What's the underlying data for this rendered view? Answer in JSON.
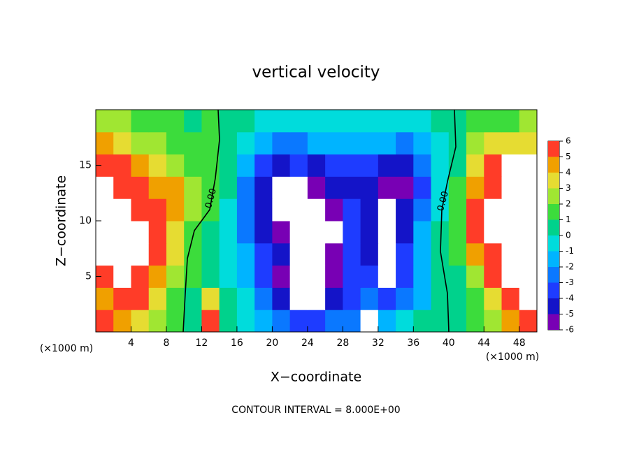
{
  "chart_data": {
    "type": "contour",
    "title": "vertical velocity",
    "xlabel": "X−coordinate",
    "ylabel": "Z−coordinate",
    "x_unit_label": "(×1000 m)",
    "footer": "CONTOUR INTERVAL = 8.000E+00",
    "contour_labels": [
      "0.00",
      "0.00"
    ],
    "xlim": [
      0,
      50
    ],
    "ylim": [
      0,
      20
    ],
    "xticks": [
      4,
      8,
      12,
      16,
      20,
      24,
      28,
      32,
      36,
      40,
      44,
      48
    ],
    "yticks": [
      5,
      10,
      15
    ],
    "x": [
      1,
      3,
      5,
      7,
      9,
      11,
      13,
      15,
      17,
      19,
      21,
      23,
      25,
      27,
      29,
      31,
      33,
      35,
      37,
      39,
      41,
      43,
      45,
      47,
      49
    ],
    "z": [
      1,
      3,
      5,
      7,
      9,
      11,
      13,
      15,
      17,
      19
    ],
    "values": [
      [
        5,
        4,
        3,
        2,
        1,
        0.5,
        5,
        0,
        -1,
        -2,
        -3,
        -4,
        -4,
        -3,
        -3,
        7,
        -2,
        -1,
        0,
        0,
        0.5,
        1,
        2,
        4,
        5
      ],
      [
        4,
        6,
        5,
        3,
        1,
        0.5,
        3,
        0,
        -1,
        -3,
        -5,
        -7,
        -8,
        -5,
        -4,
        -3,
        -4,
        -3,
        -2,
        0,
        0.5,
        1,
        3,
        5,
        7
      ],
      [
        5,
        8,
        6,
        4,
        2,
        1,
        0.5,
        -1,
        -2,
        -4,
        -6,
        -8,
        -8,
        -6,
        -4,
        -4,
        -7,
        -4,
        -2,
        0,
        0.5,
        2,
        5,
        7,
        8
      ],
      [
        8,
        7,
        8,
        5,
        3,
        1,
        0.5,
        -1,
        -2,
        -4,
        -5,
        -8,
        -8,
        -6,
        -4,
        -5,
        -8,
        -4,
        -2,
        0,
        1,
        4,
        6,
        7,
        8
      ],
      [
        8,
        8,
        7,
        5,
        3,
        1.5,
        0.5,
        -1,
        -3,
        -5,
        -6,
        -8,
        -8,
        -7,
        -4,
        -5,
        -8,
        -5,
        -2,
        0,
        1,
        5,
        7,
        8,
        7
      ],
      [
        8,
        8,
        5,
        5,
        4,
        2,
        1,
        -0.5,
        -3,
        -5,
        -8,
        -7,
        -8,
        -6,
        -4,
        -5,
        -7,
        -5,
        -3,
        -1,
        1,
        5,
        7,
        8,
        7
      ],
      [
        8,
        6,
        5,
        4,
        4,
        2,
        1,
        0,
        -3,
        -5,
        -7,
        -7,
        -6,
        -5,
        -5,
        -5,
        -6,
        -6,
        -4,
        -1,
        1,
        4,
        6,
        8,
        8
      ],
      [
        6,
        5,
        4,
        3,
        2,
        1.5,
        1,
        0.5,
        -2,
        -4,
        -5,
        -4,
        -5,
        -4,
        -4,
        -4,
        -5,
        -5,
        -3,
        -1,
        0.5,
        3,
        5,
        7,
        7
      ],
      [
        4,
        3,
        2,
        2,
        1.5,
        1,
        1,
        0.5,
        -1,
        -2,
        -3,
        -3,
        -2,
        -2,
        -2,
        -2,
        -2,
        -3,
        -2,
        -0.5,
        0.5,
        2,
        3,
        3,
        3
      ],
      [
        2,
        2,
        1,
        1,
        1,
        0.5,
        1,
        0.5,
        0,
        -0.5,
        -1,
        -1,
        -1,
        -1,
        -1,
        -1,
        -1,
        -1,
        -0.5,
        0,
        0.5,
        1,
        1,
        1.5,
        2
      ]
    ],
    "colorbar_ticks": [
      -6,
      -5,
      -4,
      -3,
      -2,
      -1,
      0,
      1,
      2,
      3,
      4,
      5,
      6
    ],
    "colors": [
      "#7800b4",
      "#1414c8",
      "#1e3cff",
      "#0a78ff",
      "#00b4ff",
      "#00dcdc",
      "#00d28c",
      "#3cdc3c",
      "#a0e632",
      "#e6dc32",
      "#f0a000",
      "#ff3c28",
      "#f08080"
    ],
    "out_of_range_color": "#ffffff"
  }
}
